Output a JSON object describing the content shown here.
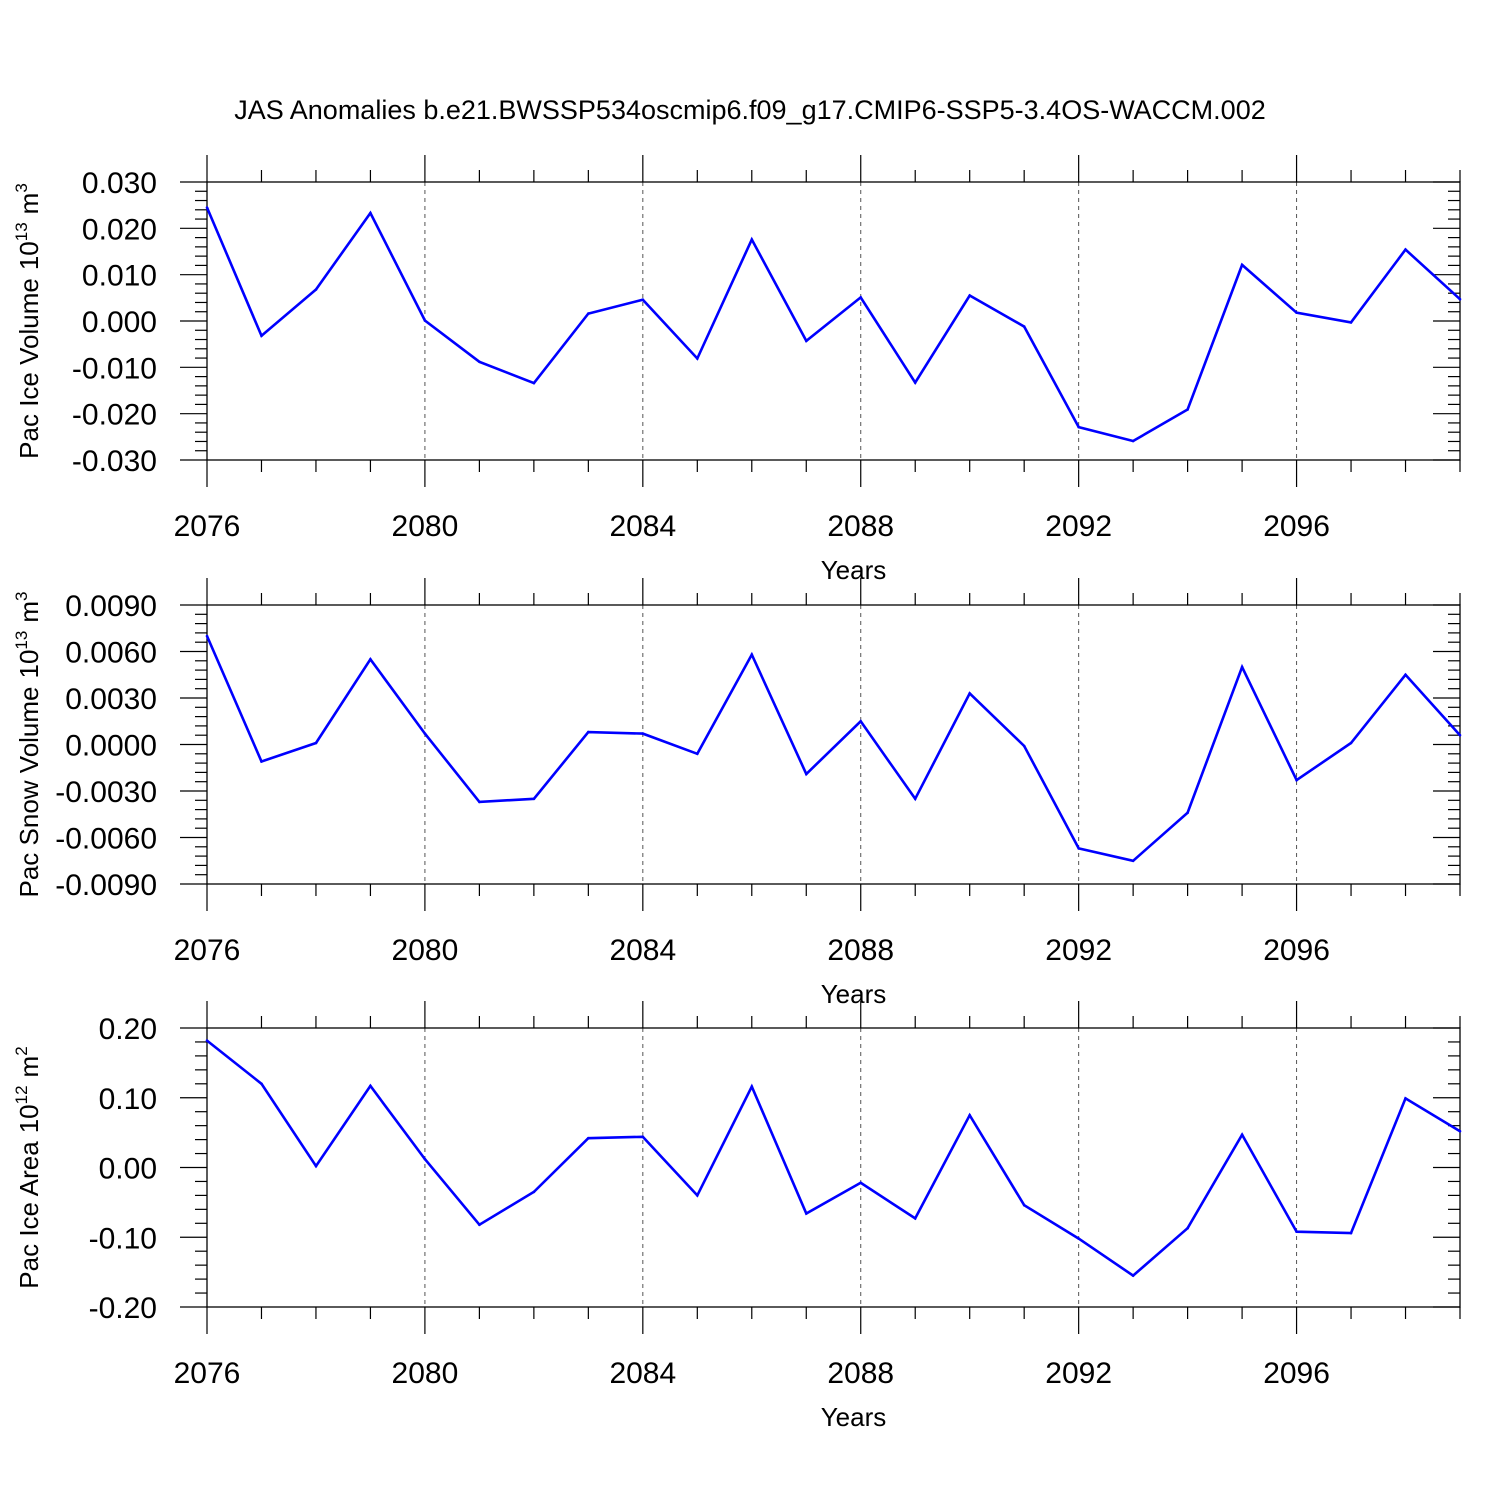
{
  "title": "JAS Anomalies b.e21.BWSSP534oscmip6.f09_g17.CMIP6-SSP5-3.4OS-WACCM.002",
  "colors": {
    "line": "#0000ff",
    "frame": "#000000",
    "grid": "#555555",
    "background": "#ffffff"
  },
  "chart_data": [
    {
      "type": "line",
      "ylabel": "Pac Ice Volume",
      "ylabel_units_base": "10",
      "ylabel_units_exp": "13",
      "ylabel_units_unit": "m",
      "ylabel_units_unit_exp": "3",
      "xlabel": "Years",
      "xlim": [
        2076,
        2099
      ],
      "ylim": [
        -0.03,
        0.03
      ],
      "yticks": [
        -0.03,
        -0.02,
        -0.01,
        0.0,
        0.01,
        0.02,
        0.03
      ],
      "ytick_labels": [
        "-0.030",
        "-0.020",
        "-0.010",
        "0.000",
        "0.010",
        "0.020",
        "0.030"
      ],
      "xticks": [
        2076,
        2080,
        2084,
        2088,
        2092,
        2096
      ],
      "xtick_labels": [
        "2076",
        "2080",
        "2084",
        "2088",
        "2092",
        "2096"
      ],
      "grid": "vertical dashed at labeled years",
      "x": [
        2076,
        2077,
        2078,
        2079,
        2080,
        2081,
        2082,
        2083,
        2084,
        2085,
        2086,
        2087,
        2088,
        2089,
        2090,
        2091,
        2092,
        2093,
        2094,
        2095,
        2096,
        2097,
        2098,
        2099
      ],
      "values": [
        0.0245,
        -0.0032,
        0.0068,
        0.0233,
        0.0001,
        -0.0088,
        -0.0134,
        0.0016,
        0.0046,
        -0.0081,
        0.0176,
        -0.0043,
        0.0051,
        -0.0133,
        0.0055,
        -0.0012,
        -0.0229,
        -0.0259,
        -0.0191,
        0.0121,
        0.0018,
        -0.0003,
        0.0154,
        0.0047
      ]
    },
    {
      "type": "line",
      "ylabel": "Pac Snow Volume",
      "ylabel_units_base": "10",
      "ylabel_units_exp": "13",
      "ylabel_units_unit": "m",
      "ylabel_units_unit_exp": "3",
      "xlabel": "Years",
      "xlim": [
        2076,
        2099
      ],
      "ylim": [
        -0.009,
        0.009
      ],
      "yticks": [
        -0.009,
        -0.006,
        -0.003,
        0.0,
        0.003,
        0.006,
        0.009
      ],
      "ytick_labels": [
        "-0.0090",
        "-0.0060",
        "-0.0030",
        "0.0000",
        "0.0030",
        "0.0060",
        "0.0090"
      ],
      "xticks": [
        2076,
        2080,
        2084,
        2088,
        2092,
        2096
      ],
      "xtick_labels": [
        "2076",
        "2080",
        "2084",
        "2088",
        "2092",
        "2096"
      ],
      "grid": "vertical dashed at labeled years",
      "x": [
        2076,
        2077,
        2078,
        2079,
        2080,
        2081,
        2082,
        2083,
        2084,
        2085,
        2086,
        2087,
        2088,
        2089,
        2090,
        2091,
        2092,
        2093,
        2094,
        2095,
        2096,
        2097,
        2098,
        2099
      ],
      "values": [
        0.007,
        -0.0011,
        0.0001,
        0.0055,
        0.0007,
        -0.0037,
        -0.0035,
        0.0008,
        0.0007,
        -0.0006,
        0.0058,
        -0.0019,
        0.0015,
        -0.0035,
        0.0033,
        -0.0001,
        -0.0067,
        -0.0075,
        -0.0044,
        0.005,
        -0.0023,
        0.0001,
        0.0045,
        0.0006
      ]
    },
    {
      "type": "line",
      "ylabel": "Pac Ice Area",
      "ylabel_units_base": "10",
      "ylabel_units_exp": "12",
      "ylabel_units_unit": "m",
      "ylabel_units_unit_exp": "2",
      "xlabel": "Years",
      "xlim": [
        2076,
        2099
      ],
      "ylim": [
        -0.2,
        0.2
      ],
      "yticks": [
        -0.2,
        -0.1,
        0.0,
        0.1,
        0.2
      ],
      "ytick_labels": [
        "-0.20",
        "-0.10",
        "0.00",
        "0.10",
        "0.20"
      ],
      "xticks": [
        2076,
        2080,
        2084,
        2088,
        2092,
        2096
      ],
      "xtick_labels": [
        "2076",
        "2080",
        "2084",
        "2088",
        "2092",
        "2096"
      ],
      "grid": "vertical dashed at labeled years",
      "x": [
        2076,
        2077,
        2078,
        2079,
        2080,
        2081,
        2082,
        2083,
        2084,
        2085,
        2086,
        2087,
        2088,
        2089,
        2090,
        2091,
        2092,
        2093,
        2094,
        2095,
        2096,
        2097,
        2098,
        2099
      ],
      "values": [
        0.182,
        0.12,
        0.002,
        0.117,
        0.012,
        -0.082,
        -0.035,
        0.042,
        0.044,
        -0.04,
        0.116,
        -0.066,
        -0.022,
        -0.073,
        0.075,
        -0.054,
        -0.102,
        -0.155,
        -0.087,
        0.047,
        -0.092,
        -0.094,
        0.099,
        0.052
      ]
    }
  ]
}
